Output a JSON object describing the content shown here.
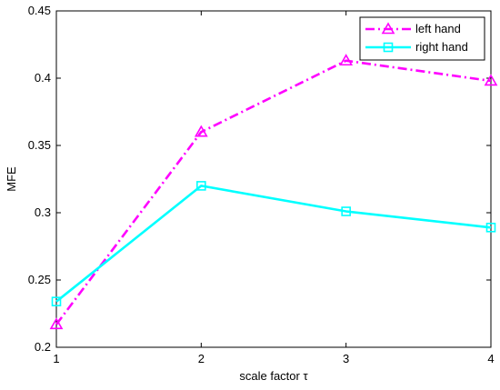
{
  "chart_data": {
    "type": "line",
    "x": [
      1,
      2,
      3,
      4
    ],
    "xticks": [
      "1",
      "2",
      "3",
      "4"
    ],
    "yticks": [
      "0.2",
      "0.25",
      "0.3",
      "0.35",
      "0.4",
      "0.45"
    ],
    "xlim": [
      1,
      4
    ],
    "ylim": [
      0.2,
      0.45
    ],
    "xlabel": "scale factor τ",
    "ylabel": "MFE",
    "grid": false,
    "legend_position": "top-right",
    "series": [
      {
        "name": "left hand",
        "values": [
          0.217,
          0.36,
          0.413,
          0.398
        ],
        "color": "#ff00ff",
        "line_style": "dash-dot",
        "marker": "triangle"
      },
      {
        "name": "right hand",
        "values": [
          0.234,
          0.32,
          0.301,
          0.289
        ],
        "color": "#00ffff",
        "line_style": "solid",
        "marker": "square"
      }
    ]
  }
}
